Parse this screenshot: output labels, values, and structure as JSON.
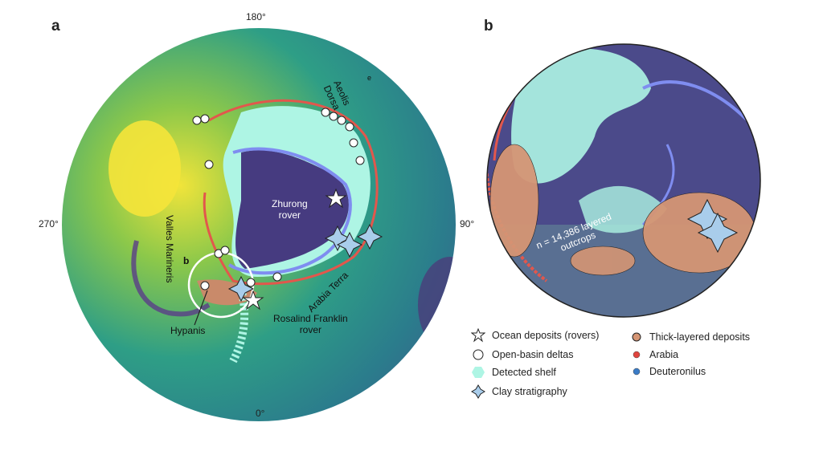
{
  "panel_a": {
    "letter": "a",
    "ticks": {
      "top": "180°",
      "left": "270°",
      "right": "90°",
      "bottom": "0°"
    },
    "labels": {
      "aeolis_dorsa": "Aeolis\nDorsa",
      "e_marker": "e",
      "zhurong": "Zhurong\nrover",
      "valles_marineris": "Valles Marineris",
      "arabia_terra": "Arabia Terra",
      "rosalind_franklin": "Rosalind Franklin\nrover",
      "hypanis": "Hypanis",
      "b_marker": "b"
    }
  },
  "panel_b": {
    "letter": "b",
    "annotation": "n = 14,386 layered\noutcrops"
  },
  "legend": {
    "items": [
      {
        "label": "Ocean deposits (rovers)",
        "icon": "star-icon"
      },
      {
        "label": "Open-basin deltas",
        "icon": "circle-icon"
      },
      {
        "label": "Detected shelf",
        "icon": "hexagon-icon",
        "color": "#aef5e4"
      },
      {
        "label": "Clay stratigraphy",
        "icon": "diamond-star-icon",
        "color": "#a9cdeb"
      },
      {
        "label": "Thick-layered deposits",
        "icon": "circle-icon",
        "color": "#d59574"
      },
      {
        "label": "Arabia",
        "icon": "dot-icon",
        "color": "#e0443e"
      },
      {
        "label": "Deuteronilus",
        "icon": "dot-icon",
        "color": "#3a7cc7"
      }
    ]
  }
}
